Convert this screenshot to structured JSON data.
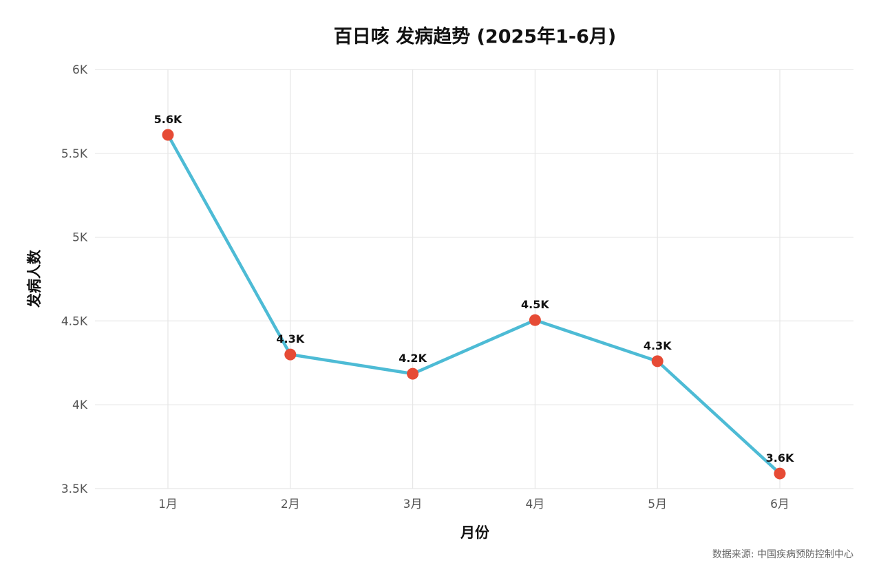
{
  "chart_data": {
    "type": "line",
    "title": "百日咳 发病趋势 (2025年1-6月)",
    "xlabel": "月份",
    "ylabel": "发病人数",
    "categories": [
      "1月",
      "2月",
      "3月",
      "4月",
      "5月",
      "6月"
    ],
    "series": [
      {
        "values": [
          5610,
          4300,
          4185,
          4505,
          4260,
          3590
        ],
        "data_labels": [
          "5.6K",
          "4.3K",
          "4.2K",
          "4.5K",
          "4.3K",
          "3.6K"
        ]
      }
    ],
    "ylim": [
      3500,
      6000
    ],
    "yticks": [
      3500,
      4000,
      4500,
      5000,
      5500,
      6000
    ],
    "ytick_labels": [
      "3.5K",
      "4K",
      "4.5K",
      "5K",
      "5.5K",
      "6K"
    ],
    "grid": true,
    "legend": "none",
    "colors": {
      "line": "#4dbbd5",
      "marker": "#e64b35"
    },
    "source": "数据来源: 中国疾病预防控制中心"
  }
}
